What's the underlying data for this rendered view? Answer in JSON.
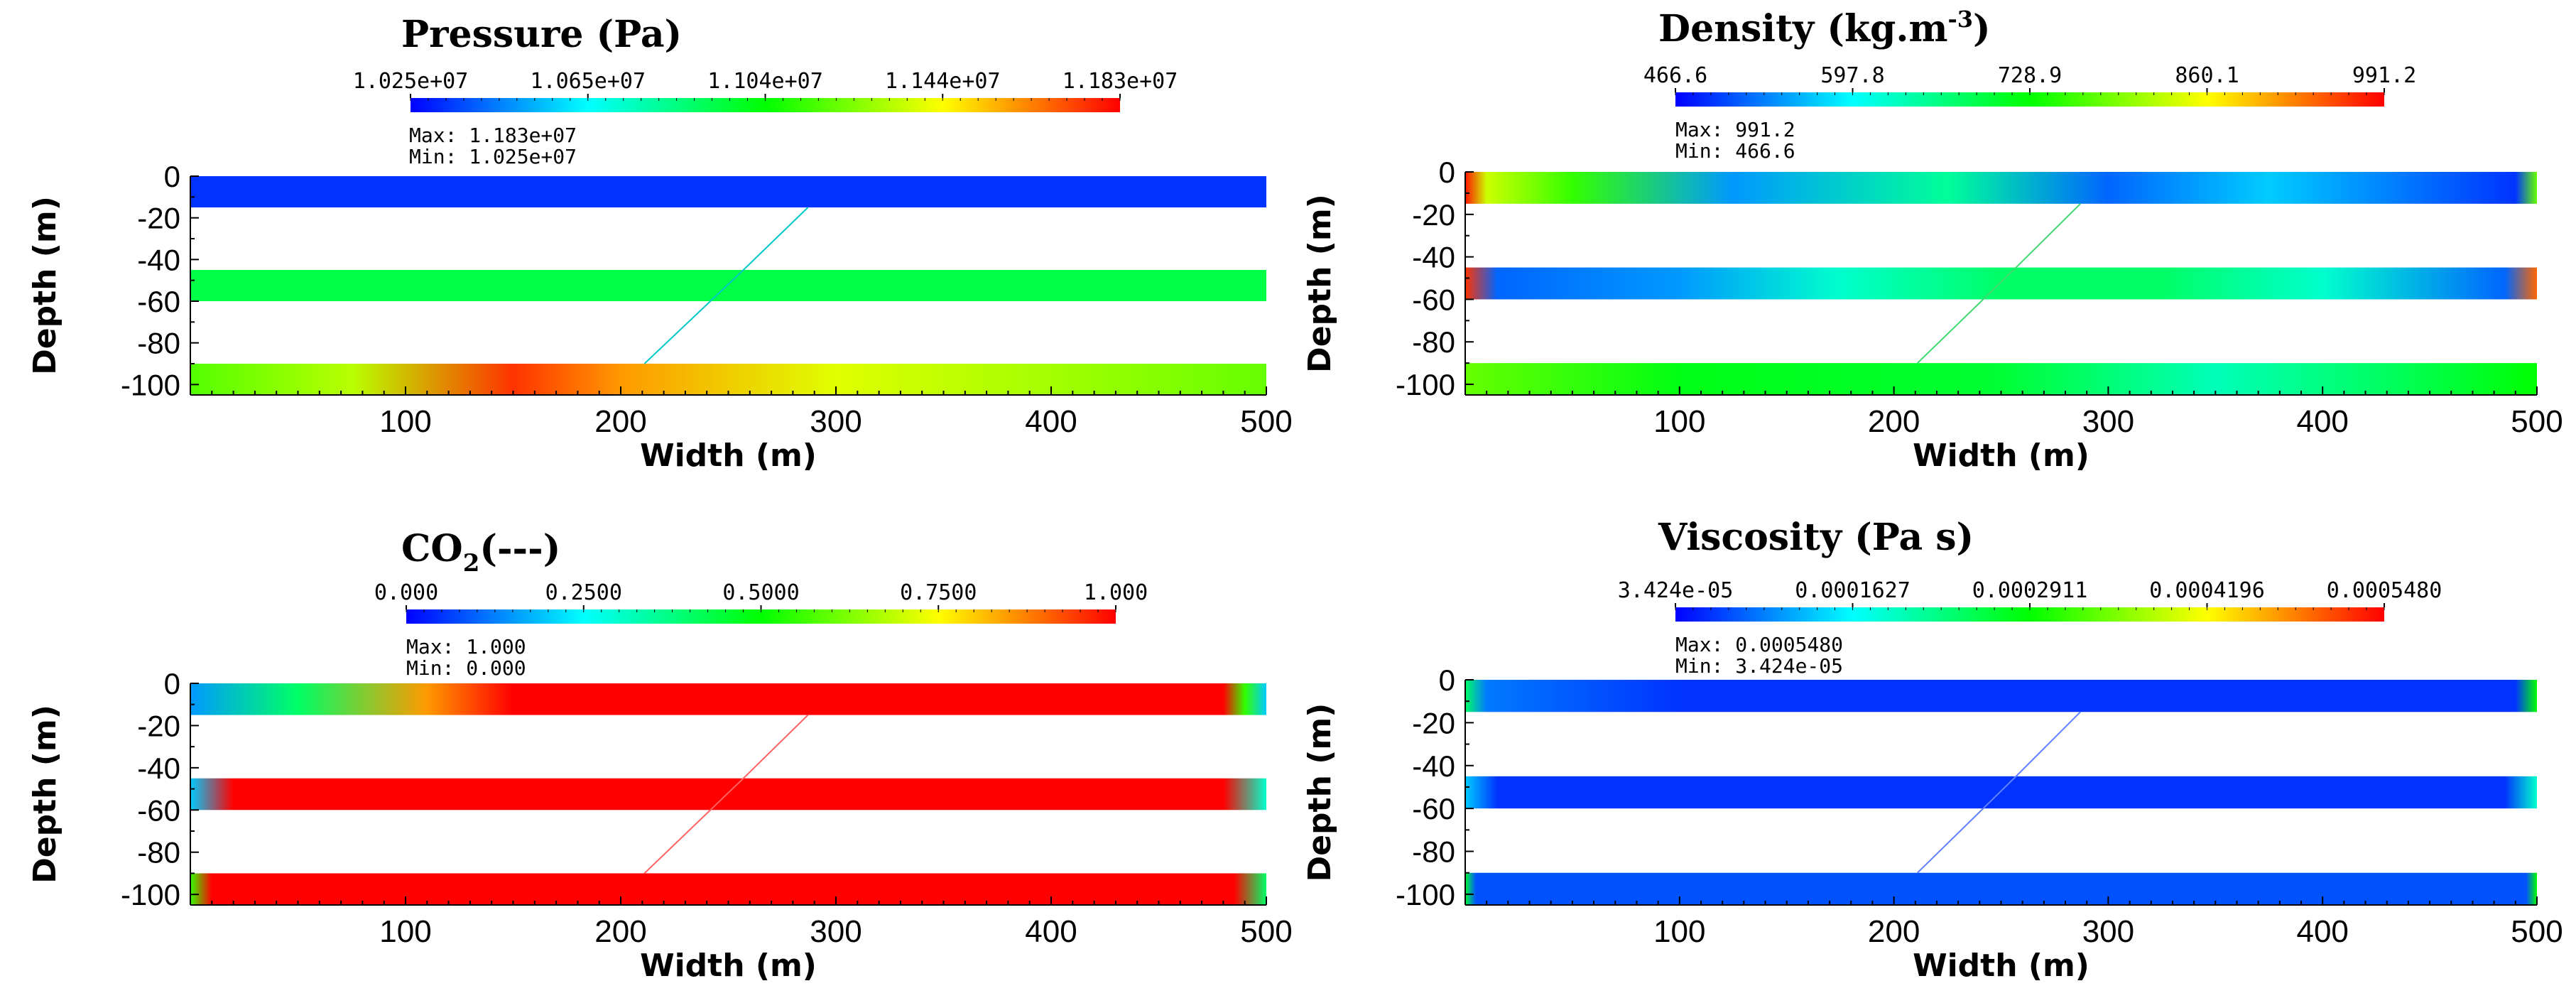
{
  "chart_data": [
    {
      "type": "heatmap",
      "title": "Pressure (Pa)",
      "colorbar": {
        "min": 10250000.0,
        "max": 11830000.0,
        "tick_labels": [
          "1.025e+07",
          "1.065e+07",
          "1.104e+07",
          "1.144e+07",
          "1.183e+07"
        ]
      },
      "max_text": "Max:  1.183e+07",
      "min_text": "Min:  1.025e+07",
      "xlabel": "Width (m)",
      "ylabel": "Depth (m)",
      "xlim": [
        0,
        500
      ],
      "ylim": [
        -105,
        0
      ],
      "x_tick_labels": [
        "100",
        "200",
        "300",
        "400",
        "500"
      ],
      "y_tick_labels": [
        "0",
        "-20",
        "-40",
        "-60",
        "-80",
        "-100"
      ],
      "layers": [
        {
          "top": 0,
          "bottom": -15,
          "profile": [
            [
              0,
              0.05
            ],
            [
              1,
              0.05
            ]
          ]
        },
        {
          "top": -45,
          "bottom": -60,
          "profile": [
            [
              0,
              0.43
            ],
            [
              1,
              0.43
            ]
          ]
        },
        {
          "top": -90,
          "bottom": -105,
          "profile": [
            [
              0,
              0.58
            ],
            [
              0.15,
              0.68
            ],
            [
              0.3,
              0.95
            ],
            [
              0.4,
              0.85
            ],
            [
              0.6,
              0.72
            ],
            [
              1,
              0.6
            ]
          ]
        }
      ],
      "fracture": {
        "points": [
          [
            211,
            -90
          ],
          [
            257,
            -45
          ],
          [
            287,
            -15
          ]
        ],
        "color": "#00c8c8"
      }
    },
    {
      "type": "heatmap",
      "title": "Density (kg.m-3)",
      "title_base": "Density (kg.m",
      "title_sup": "-3",
      "title_end": ")",
      "colorbar": {
        "min": 466.6,
        "max": 991.2,
        "tick_labels": [
          "466.6",
          "597.8",
          "728.9",
          "860.1",
          "991.2"
        ]
      },
      "max_text": "Max:  991.2",
      "min_text": "Min:  466.6",
      "xlabel": "Width (m)",
      "ylabel": "Depth (m)",
      "xlim": [
        0,
        500
      ],
      "ylim": [
        -105,
        0
      ],
      "x_tick_labels": [
        "100",
        "200",
        "300",
        "400",
        "500"
      ],
      "y_tick_labels": [
        "0",
        "-20",
        "-40",
        "-60",
        "-80",
        "-100"
      ],
      "layers": [
        {
          "top": 0,
          "bottom": -15,
          "profile": [
            [
              0,
              0.98
            ],
            [
              0.02,
              0.7
            ],
            [
              0.1,
              0.55
            ],
            [
              0.25,
              0.15
            ],
            [
              0.45,
              0.35
            ],
            [
              0.6,
              0.1
            ],
            [
              0.75,
              0.2
            ],
            [
              0.98,
              0.05
            ],
            [
              1,
              0.6
            ]
          ]
        },
        {
          "top": -45,
          "bottom": -60,
          "profile": [
            [
              0,
              0.95
            ],
            [
              0.03,
              0.1
            ],
            [
              0.2,
              0.15
            ],
            [
              0.35,
              0.3
            ],
            [
              0.5,
              0.4
            ],
            [
              0.65,
              0.4
            ],
            [
              0.8,
              0.3
            ],
            [
              0.97,
              0.1
            ],
            [
              1,
              0.9
            ]
          ]
        },
        {
          "top": -90,
          "bottom": -105,
          "profile": [
            [
              0,
              0.6
            ],
            [
              0.2,
              0.48
            ],
            [
              0.5,
              0.45
            ],
            [
              0.7,
              0.32
            ],
            [
              0.85,
              0.4
            ],
            [
              1,
              0.5
            ]
          ]
        }
      ],
      "fracture": {
        "points": [
          [
            211,
            -90
          ],
          [
            257,
            -45
          ],
          [
            287,
            -15
          ]
        ],
        "color": "#40d870"
      }
    },
    {
      "type": "heatmap",
      "title": "CO2(---)",
      "title_base": "CO",
      "title_sub": "2",
      "title_end": "(---)",
      "colorbar": {
        "min": 0,
        "max": 1,
        "tick_labels": [
          "0.000",
          "0.2500",
          "0.5000",
          "0.7500",
          "1.000"
        ]
      },
      "max_text": "Max:  1.000",
      "min_text": "Min:  0.000",
      "xlabel": "Width (m)",
      "ylabel": "Depth (m)",
      "xlim": [
        0,
        500
      ],
      "ylim": [
        -105,
        0
      ],
      "x_tick_labels": [
        "100",
        "200",
        "300",
        "400",
        "500"
      ],
      "y_tick_labels": [
        "0",
        "-20",
        "-40",
        "-60",
        "-80",
        "-100"
      ],
      "layers": [
        {
          "top": 0,
          "bottom": -15,
          "profile": [
            [
              0,
              0.15
            ],
            [
              0.1,
              0.4
            ],
            [
              0.22,
              0.85
            ],
            [
              0.3,
              1
            ],
            [
              0.96,
              1
            ],
            [
              0.98,
              0.55
            ],
            [
              1,
              0.2
            ]
          ]
        },
        {
          "top": -45,
          "bottom": -60,
          "profile": [
            [
              0,
              0.2
            ],
            [
              0.04,
              1
            ],
            [
              0.96,
              1
            ],
            [
              1,
              0.3
            ]
          ]
        },
        {
          "top": -90,
          "bottom": -105,
          "profile": [
            [
              0,
              0.55
            ],
            [
              0.02,
              1
            ],
            [
              0.97,
              1
            ],
            [
              1,
              0.4
            ]
          ]
        }
      ],
      "fracture": {
        "points": [
          [
            211,
            -90
          ],
          [
            257,
            -45
          ],
          [
            287,
            -15
          ]
        ],
        "color": "#ff6060"
      }
    },
    {
      "type": "heatmap",
      "title": "Viscosity (Pa s)",
      "colorbar": {
        "min": 3.424e-05,
        "max": 0.000548,
        "tick_labels": [
          "3.424e-05",
          "0.0001627",
          "0.0002911",
          "0.0004196",
          "0.0005480"
        ]
      },
      "max_text": "Max:  0.0005480",
      "min_text": "Min:  3.424e-05",
      "xlabel": "Width (m)",
      "ylabel": "Depth (m)",
      "xlim": [
        0,
        500
      ],
      "ylim": [
        -105,
        0
      ],
      "x_tick_labels": [
        "100",
        "200",
        "300",
        "400",
        "500"
      ],
      "y_tick_labels": [
        "0",
        "-20",
        "-40",
        "-60",
        "-80",
        "-100"
      ],
      "layers": [
        {
          "top": 0,
          "bottom": -15,
          "profile": [
            [
              0,
              0.4
            ],
            [
              0.02,
              0.12
            ],
            [
              0.2,
              0.05
            ],
            [
              0.98,
              0.05
            ],
            [
              1,
              0.5
            ]
          ]
        },
        {
          "top": -45,
          "bottom": -60,
          "profile": [
            [
              0,
              0.2
            ],
            [
              0.03,
              0.05
            ],
            [
              0.97,
              0.05
            ],
            [
              1,
              0.3
            ]
          ]
        },
        {
          "top": -90,
          "bottom": -105,
          "profile": [
            [
              0,
              0.45
            ],
            [
              0.01,
              0.08
            ],
            [
              0.99,
              0.08
            ],
            [
              1,
              0.5
            ]
          ]
        }
      ],
      "fracture": {
        "points": [
          [
            211,
            -90
          ],
          [
            257,
            -45
          ],
          [
            287,
            -15
          ]
        ],
        "color": "#6080ff"
      }
    }
  ],
  "colormap": [
    "#0000ff",
    "#00ffff",
    "#00ff00",
    "#ffff00",
    "#ff0000"
  ]
}
